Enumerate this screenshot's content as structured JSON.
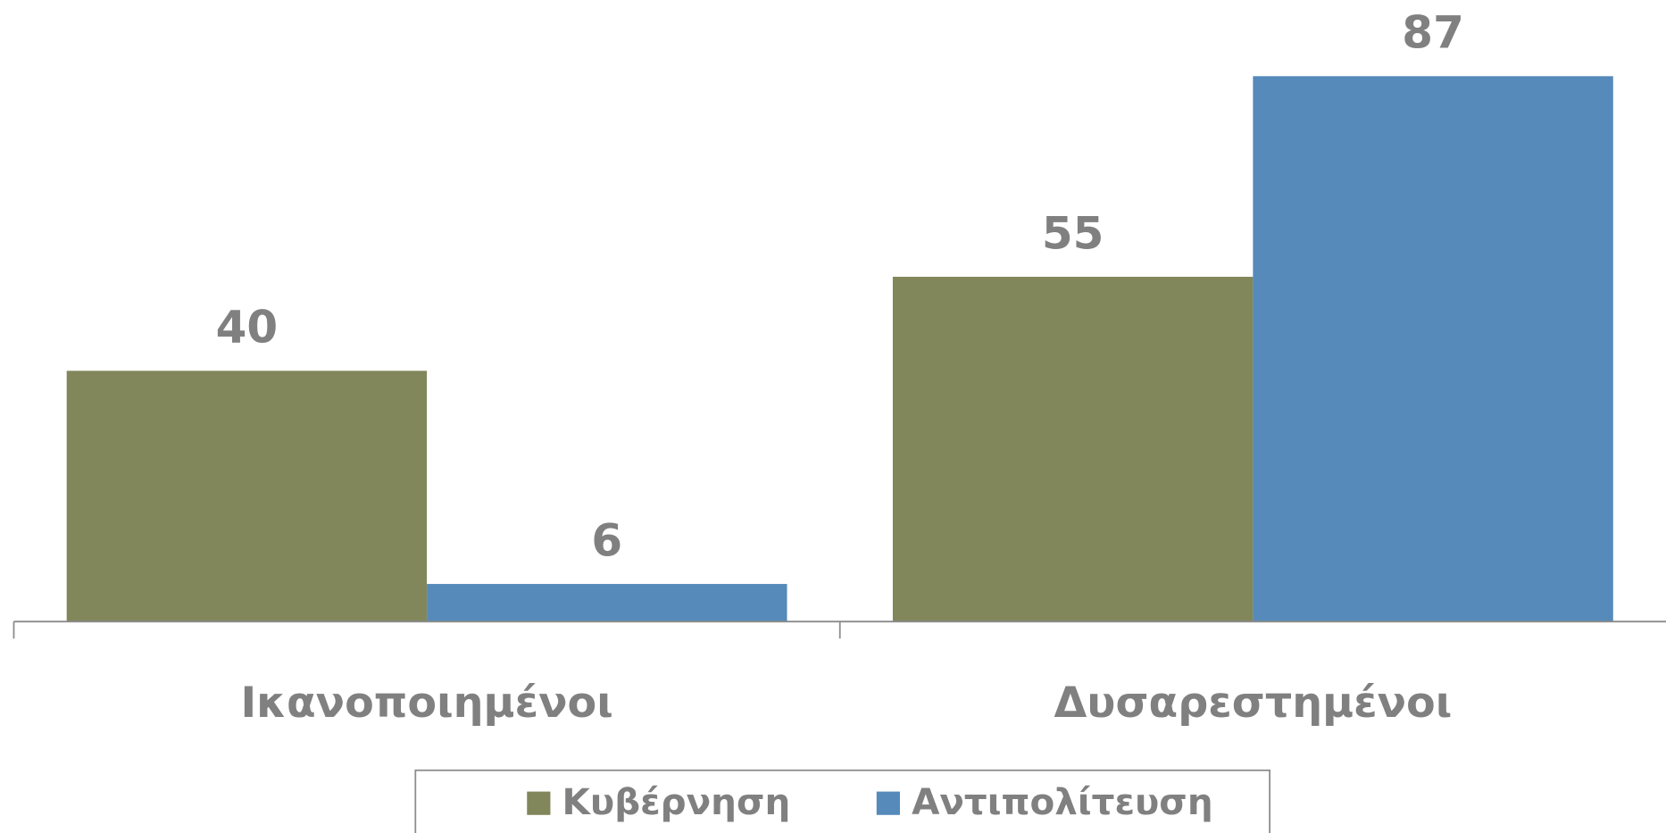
{
  "chart_data": {
    "type": "bar",
    "categories": [
      "Ικανοποιημένοι",
      "Δυσαρεστημένοι"
    ],
    "series": [
      {
        "name": "Κυβέρνηση",
        "color": "#81875b",
        "values": [
          40,
          55
        ]
      },
      {
        "name": "Αντιπολίτευση",
        "color": "#558aba",
        "values": [
          6,
          87
        ]
      }
    ],
    "ylim": [
      0,
      100
    ],
    "legend": "bottom"
  }
}
